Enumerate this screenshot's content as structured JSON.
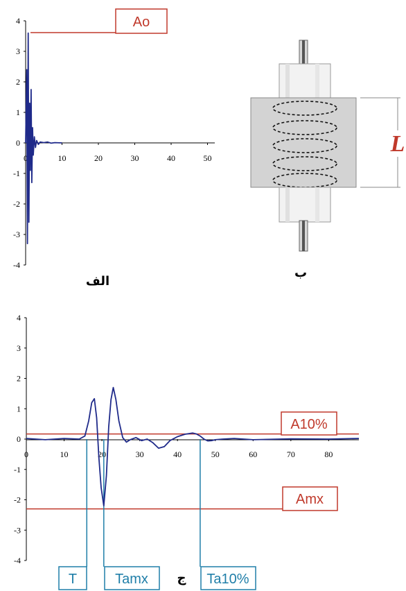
{
  "chart_data": [
    {
      "type": "line",
      "caption": "الف",
      "xlim": [
        0,
        52
      ],
      "ylim": [
        -4,
        4
      ],
      "x_ticks": [
        "0",
        "10",
        "20",
        "30",
        "40",
        "50"
      ],
      "y_ticks": [
        "4",
        "3",
        "2",
        "1",
        "0",
        "-1",
        "-2",
        "-3",
        "-4"
      ],
      "annotation": "Ao",
      "annotation_level": 3.55,
      "series": [
        {
          "color": "#1f2a8a",
          "x": [
            0,
            0.3,
            0.5,
            0.7,
            0.9,
            1.1,
            1.3,
            1.5,
            1.7,
            1.9,
            2.1,
            2.4,
            2.7,
            3.0,
            3.5,
            4,
            5,
            6,
            7,
            8,
            10
          ],
          "y": [
            0,
            2.4,
            -3.3,
            3.6,
            -2.6,
            1.3,
            -0.9,
            1.75,
            -1.3,
            0.5,
            -0.4,
            0.2,
            -0.15,
            0.08,
            -0.05,
            0.03,
            0.01,
            0.03,
            -0.01,
            0.01,
            0.0
          ]
        }
      ]
    },
    {
      "type": "line",
      "caption": "ج",
      "xlim": [
        0,
        88
      ],
      "ylim": [
        -4,
        4
      ],
      "x_ticks": [
        "0",
        "10",
        "20",
        "30",
        "40",
        "50",
        "60",
        "70",
        "80"
      ],
      "y_ticks": [
        "4",
        "3",
        "2",
        "1",
        "0",
        "-1",
        "-2",
        "-3",
        "-4"
      ],
      "hlines": [
        {
          "label": "A10%",
          "value": 0.17
        },
        {
          "label": "Amx",
          "value": -2.3
        }
      ],
      "vlines": [
        {
          "label": "T",
          "value": 16
        },
        {
          "label": "Tamx",
          "value": 20.5
        },
        {
          "label": "Ta10%",
          "value": 46
        }
      ],
      "series": [
        {
          "color": "#1f2a8a",
          "x": [
            0,
            5,
            10,
            14,
            15.5,
            16.5,
            17.3,
            18,
            18.6,
            19.2,
            19.8,
            20.5,
            21.2,
            21.8,
            22.4,
            23,
            23.7,
            24.5,
            25.5,
            26.5,
            27.5,
            29,
            30.5,
            32,
            33.5,
            35,
            36.5,
            38,
            40,
            42,
            44,
            45,
            46,
            47,
            48,
            49,
            50,
            52,
            55,
            60,
            70,
            80,
            88
          ],
          "y": [
            0.02,
            -0.02,
            0.02,
            0.0,
            0.1,
            0.6,
            1.2,
            1.33,
            0.7,
            -0.6,
            -1.6,
            -2.2,
            -1.2,
            0.4,
            1.3,
            1.7,
            1.3,
            0.6,
            0.05,
            -0.1,
            -0.02,
            0.05,
            -0.05,
            0.0,
            -0.12,
            -0.3,
            -0.25,
            -0.05,
            0.08,
            0.16,
            0.2,
            0.17,
            0.1,
            0.0,
            -0.06,
            -0.05,
            -0.02,
            0.0,
            0.02,
            -0.02,
            0.01,
            0.0,
            0.02
          ]
        }
      ]
    }
  ],
  "diagram": {
    "caption": "ب",
    "length_label": "L"
  }
}
